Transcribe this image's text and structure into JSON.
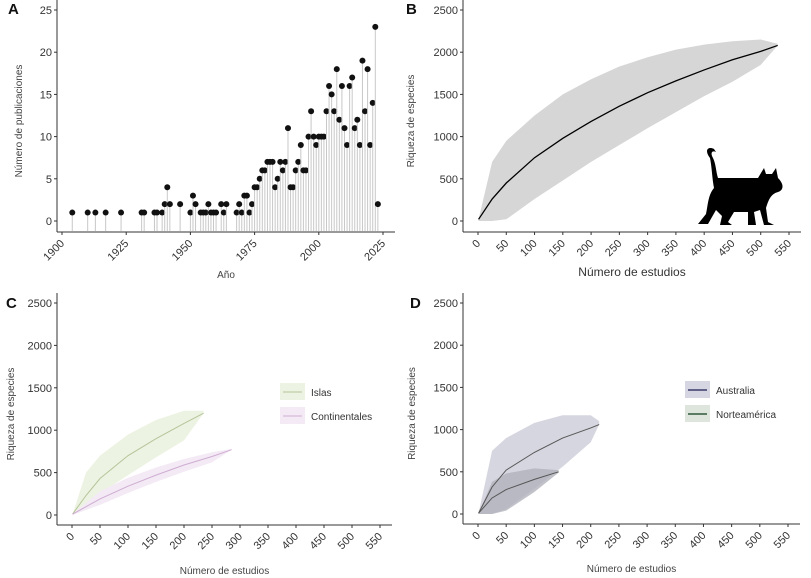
{
  "chart_data": [
    {
      "panel": "A",
      "type": "lollipop",
      "xlabel": "Año",
      "ylabel": "Número de publicaciones",
      "xlim": [
        1900,
        2025
      ],
      "ylim": [
        0,
        25
      ],
      "xticks": [
        1900,
        1925,
        1950,
        1975,
        2000,
        2025
      ],
      "yticks": [
        0,
        5,
        10,
        15,
        20,
        25
      ],
      "grid": false,
      "x": [
        1904,
        1910,
        1913,
        1917,
        1923,
        1931,
        1932,
        1936,
        1937,
        1939,
        1940,
        1941,
        1942,
        1946,
        1950,
        1951,
        1952,
        1954,
        1955,
        1956,
        1957,
        1958,
        1959,
        1960,
        1962,
        1963,
        1964,
        1968,
        1969,
        1970,
        1971,
        1972,
        1973,
        1974,
        1975,
        1976,
        1977,
        1978,
        1979,
        1980,
        1981,
        1982,
        1983,
        1984,
        1985,
        1986,
        1987,
        1988,
        1989,
        1990,
        1991,
        1992,
        1993,
        1994,
        1995,
        1996,
        1997,
        1998,
        1999,
        2000,
        2001,
        2002,
        2003,
        2004,
        2005,
        2006,
        2007,
        2008,
        2009,
        2010,
        2011,
        2012,
        2013,
        2014,
        2015,
        2016,
        2017,
        2018,
        2019,
        2020,
        2021,
        2022,
        2023
      ],
      "y": [
        1,
        1,
        1,
        1,
        1,
        1,
        1,
        1,
        1,
        1,
        2,
        4,
        2,
        2,
        1,
        3,
        2,
        1,
        1,
        1,
        2,
        1,
        1,
        1,
        2,
        1,
        2,
        1,
        2,
        1,
        3,
        3,
        1,
        2,
        4,
        4,
        5,
        6,
        6,
        7,
        7,
        7,
        4,
        5,
        7,
        6,
        7,
        11,
        4,
        4,
        6,
        7,
        9,
        6,
        6,
        10,
        13,
        10,
        9,
        10,
        10,
        10,
        13,
        16,
        15,
        13,
        18,
        12,
        16,
        11,
        9,
        16,
        17,
        11,
        12,
        9,
        19,
        13,
        18,
        9,
        14,
        23,
        2
      ]
    },
    {
      "panel": "B",
      "type": "area",
      "xlabel": "Número de estudios",
      "ylabel": "Riqueza de especies",
      "xlim": [
        0,
        550
      ],
      "ylim": [
        0,
        2500
      ],
      "xticks": [
        0,
        50,
        100,
        150,
        200,
        250,
        300,
        350,
        400,
        450,
        500,
        550
      ],
      "yticks": [
        0,
        500,
        1000,
        1500,
        2000,
        2500
      ],
      "series": [
        {
          "color": "#000000",
          "band_color": "#d6d6d6",
          "x": [
            1,
            25,
            50,
            100,
            150,
            200,
            250,
            300,
            350,
            400,
            450,
            500,
            530
          ],
          "y": [
            20,
            260,
            450,
            750,
            980,
            1180,
            1360,
            1520,
            1660,
            1790,
            1910,
            2010,
            2080
          ],
          "lower": [
            0,
            0,
            20,
            260,
            480,
            700,
            900,
            1100,
            1290,
            1480,
            1650,
            1850,
            2080
          ],
          "upper": [
            20,
            700,
            950,
            1250,
            1500,
            1680,
            1830,
            1940,
            2030,
            2090,
            2130,
            2150,
            2100
          ]
        }
      ],
      "icon": "cat-silhouette"
    },
    {
      "panel": "C",
      "type": "area",
      "xlabel": "Número de estudios",
      "ylabel": "Riqueza de especies",
      "xlim": [
        0,
        550
      ],
      "ylim": [
        0,
        2500
      ],
      "xticks": [
        0,
        50,
        100,
        150,
        200,
        250,
        300,
        350,
        400,
        450,
        500,
        550
      ],
      "yticks": [
        0,
        500,
        1000,
        1500,
        2000,
        2500
      ],
      "legend_position": "right",
      "series": [
        {
          "name": "Islas",
          "color": "#b5c49a",
          "band_color": "#edf3e2",
          "x": [
            1,
            25,
            50,
            100,
            150,
            200,
            235
          ],
          "y": [
            10,
            230,
            430,
            700,
            900,
            1080,
            1200
          ],
          "lower": [
            0,
            80,
            250,
            470,
            680,
            880,
            1200
          ],
          "upper": [
            10,
            500,
            700,
            950,
            1120,
            1230,
            1230
          ]
        },
        {
          "name": "Continentales",
          "color": "#cfadd2",
          "band_color": "#f3eaf5",
          "x": [
            1,
            50,
            100,
            150,
            200,
            250,
            285
          ],
          "y": [
            10,
            190,
            340,
            470,
            590,
            690,
            770
          ],
          "lower": [
            0,
            120,
            260,
            390,
            510,
            620,
            770
          ],
          "upper": [
            10,
            280,
            440,
            560,
            660,
            740,
            780
          ]
        }
      ]
    },
    {
      "panel": "D",
      "type": "area",
      "xlabel": "Número de estudios",
      "ylabel": "Riqueza de especies",
      "xlim": [
        0,
        550
      ],
      "ylim": [
        0,
        2500
      ],
      "xticks": [
        0,
        50,
        100,
        150,
        200,
        250,
        300,
        350,
        400,
        450,
        500,
        550
      ],
      "yticks": [
        0,
        500,
        1000,
        1500,
        2000,
        2500
      ],
      "legend_position": "right",
      "series": [
        {
          "name": "Australia",
          "color": "#3c3c6a",
          "band_color": "#d6d6e0",
          "x": [
            1,
            25,
            50,
            100,
            150,
            200,
            215
          ],
          "y": [
            10,
            320,
            520,
            730,
            900,
            1020,
            1060
          ],
          "lower": [
            0,
            0,
            60,
            300,
            560,
            850,
            1060
          ],
          "upper": [
            10,
            750,
            900,
            1080,
            1170,
            1170,
            1100
          ]
        },
        {
          "name": "Norteamérica",
          "color": "#2e5a3a",
          "band_color": "#b2b2bb",
          "x": [
            1,
            25,
            50,
            100,
            143
          ],
          "y": [
            10,
            190,
            290,
            410,
            500
          ],
          "lower": [
            0,
            0,
            40,
            260,
            490
          ],
          "upper": [
            10,
            380,
            480,
            540,
            520
          ]
        }
      ]
    }
  ]
}
